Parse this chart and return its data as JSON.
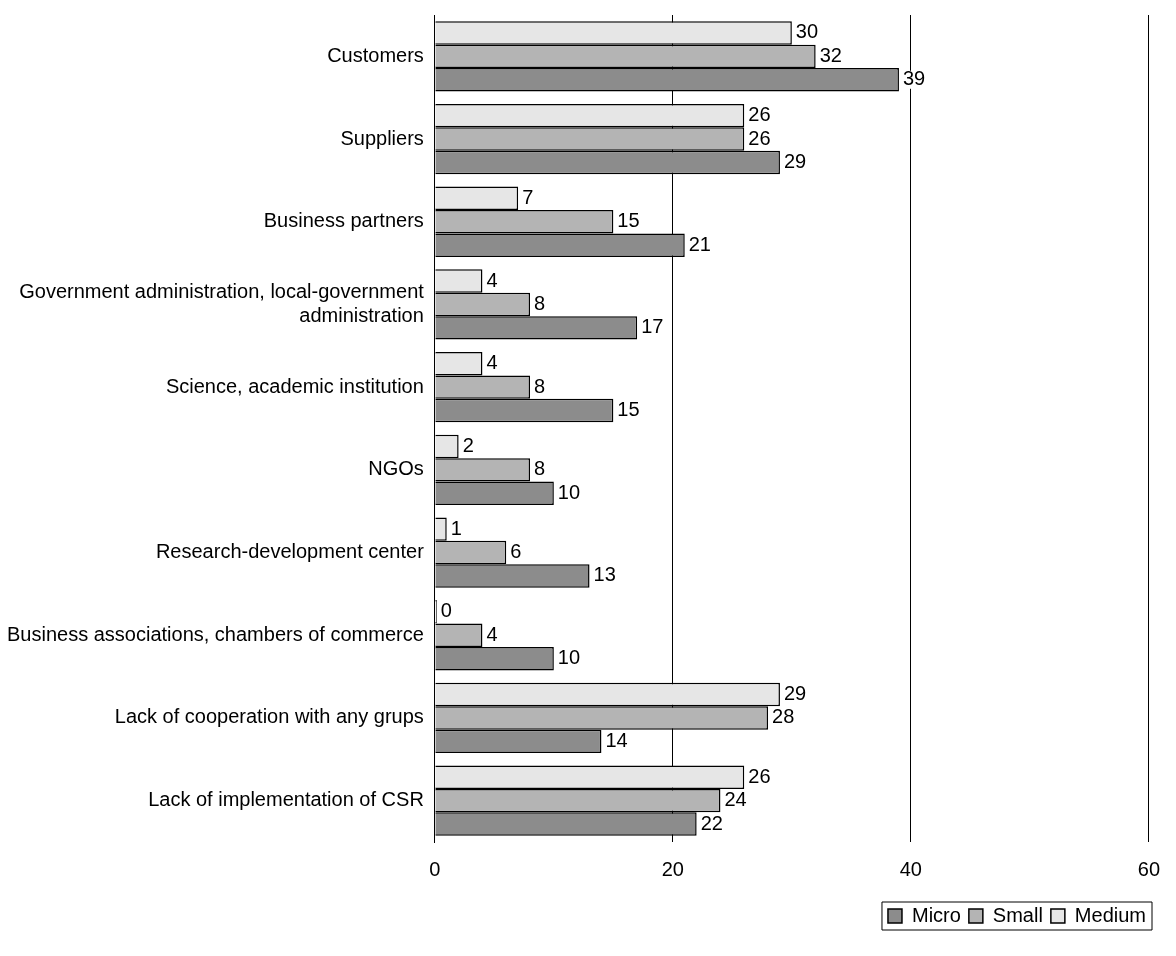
{
  "chart_data": {
    "type": "bar",
    "orientation": "horizontal",
    "categories": [
      "Customers",
      "Suppliers",
      "Business partners",
      "Government administration, local-government administration",
      "Science, academic institution",
      "NGOs",
      "Research-development center",
      "Business associations, chambers of commerce",
      "Lack of cooperation with any grups",
      "Lack of implementation of CSR"
    ],
    "series": [
      {
        "name": "Micro",
        "color": "#8c8c8c",
        "values": [
          39,
          29,
          21,
          17,
          15,
          10,
          13,
          10,
          14,
          22
        ]
      },
      {
        "name": "Small",
        "color": "#b4b4b4",
        "values": [
          32,
          26,
          15,
          8,
          8,
          8,
          6,
          4,
          28,
          24
        ]
      },
      {
        "name": "Medium",
        "color": "#e6e6e6",
        "values": [
          30,
          26,
          7,
          4,
          4,
          2,
          1,
          0,
          29,
          26
        ]
      }
    ],
    "xlim": [
      0,
      60
    ],
    "xticks": [
      0,
      20,
      40,
      60
    ],
    "grid": "x",
    "legend": "bottom",
    "data_labels": true
  }
}
